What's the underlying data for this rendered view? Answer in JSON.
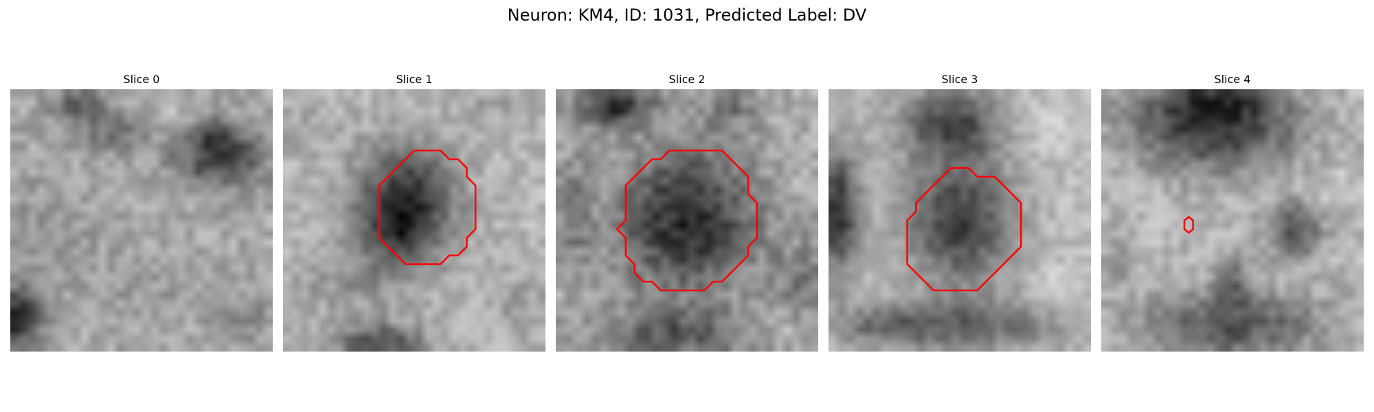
{
  "figure": {
    "title": "Neuron: KM4, ID: 1031, Predicted Label: DV"
  },
  "grid_size": 30,
  "contour_color": "#ff0000",
  "panels": [
    {
      "title": "Slice 0",
      "contour": null
    },
    {
      "title": "Slice 1",
      "contour": [
        [
          15,
          7
        ],
        [
          18,
          7
        ],
        [
          19,
          8
        ],
        [
          20,
          8
        ],
        [
          21,
          9
        ],
        [
          21,
          10
        ],
        [
          22,
          11
        ],
        [
          22,
          16
        ],
        [
          21,
          17
        ],
        [
          21,
          18
        ],
        [
          20,
          19
        ],
        [
          19,
          19
        ],
        [
          18,
          20
        ],
        [
          14,
          20
        ],
        [
          13,
          19
        ],
        [
          12,
          18
        ],
        [
          11,
          17
        ],
        [
          11,
          11
        ],
        [
          12,
          10
        ],
        [
          13,
          9
        ],
        [
          14,
          8
        ]
      ]
    },
    {
      "title": "Slice 2",
      "contour": [
        [
          13,
          7
        ],
        [
          19,
          7
        ],
        [
          20,
          8
        ],
        [
          21,
          9
        ],
        [
          22,
          10
        ],
        [
          22,
          12
        ],
        [
          23,
          13
        ],
        [
          23,
          17
        ],
        [
          22,
          18
        ],
        [
          22,
          19
        ],
        [
          21,
          20
        ],
        [
          20,
          21
        ],
        [
          19,
          22
        ],
        [
          18,
          22
        ],
        [
          17,
          23
        ],
        [
          12,
          23
        ],
        [
          11,
          22
        ],
        [
          10,
          22
        ],
        [
          9,
          21
        ],
        [
          9,
          20
        ],
        [
          8,
          19
        ],
        [
          8,
          17
        ],
        [
          7,
          16
        ],
        [
          8,
          15
        ],
        [
          8,
          11
        ],
        [
          9,
          10
        ],
        [
          10,
          9
        ],
        [
          11,
          8
        ],
        [
          12,
          8
        ]
      ]
    },
    {
      "title": "Slice 3",
      "contour": [
        [
          14,
          9
        ],
        [
          16,
          9
        ],
        [
          17,
          10
        ],
        [
          19,
          10
        ],
        [
          20,
          11
        ],
        [
          21,
          12
        ],
        [
          22,
          13
        ],
        [
          22,
          18
        ],
        [
          21,
          19
        ],
        [
          20,
          20
        ],
        [
          19,
          21
        ],
        [
          18,
          22
        ],
        [
          17,
          23
        ],
        [
          12,
          23
        ],
        [
          11,
          22
        ],
        [
          10,
          21
        ],
        [
          9,
          20
        ],
        [
          9,
          15
        ],
        [
          10,
          14
        ],
        [
          10,
          13
        ],
        [
          11,
          12
        ],
        [
          12,
          11
        ],
        [
          13,
          10
        ]
      ]
    },
    {
      "title": "Slice 4",
      "contour": [
        [
          10,
          14.6
        ],
        [
          10.5,
          15
        ],
        [
          10.5,
          16
        ],
        [
          10,
          16.4
        ],
        [
          9.5,
          16
        ],
        [
          9.5,
          15
        ]
      ]
    }
  ]
}
